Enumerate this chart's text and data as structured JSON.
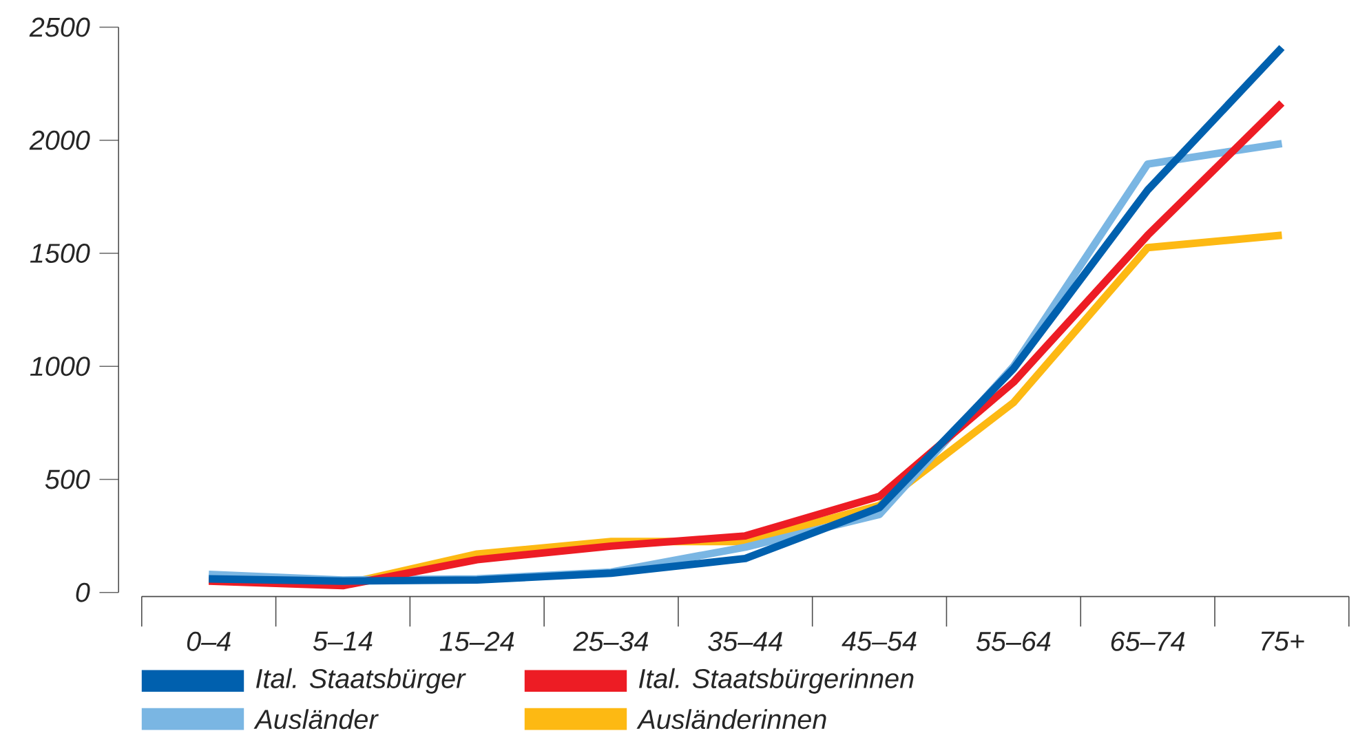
{
  "chart_data": {
    "type": "line",
    "categories": [
      "0–4",
      "5–14",
      "15–24",
      "25–34",
      "35–44",
      "45–54",
      "55–64",
      "65–74",
      "75+"
    ],
    "series": [
      {
        "name": "Ital. Staatsbürger",
        "color": "#0060ae",
        "values": [
          60,
          50,
          55,
          85,
          150,
          375,
          990,
          1780,
          2410
        ]
      },
      {
        "name": "Ital. Staatsbürgerinnen",
        "color": "#ed1c24",
        "values": [
          50,
          30,
          145,
          205,
          250,
          425,
          930,
          1580,
          2165
        ]
      },
      {
        "name": "Ausländer",
        "color": "#7ab6e3",
        "values": [
          80,
          55,
          60,
          90,
          200,
          345,
          1000,
          1895,
          1985
        ]
      },
      {
        "name": "Ausländerinnen",
        "color": "#fdb913",
        "values": [
          55,
          35,
          170,
          225,
          225,
          385,
          840,
          1525,
          1580
        ]
      }
    ],
    "ylim": [
      0,
      2500
    ],
    "yticks": [
      0,
      500,
      1000,
      1500,
      2000,
      2500
    ],
    "grid": false,
    "legend": "bottom",
    "marker": "none",
    "line_style": "solid"
  }
}
